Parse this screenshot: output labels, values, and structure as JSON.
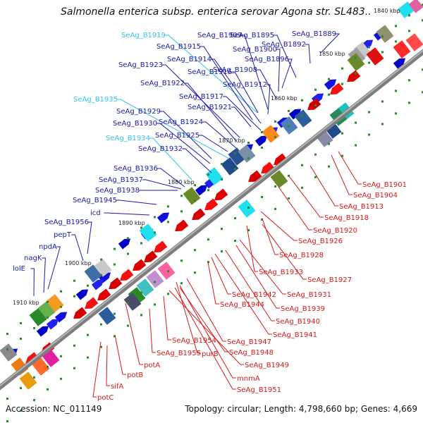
{
  "title": "Salmonella enterica subsp. enterica serovar Agona str. SL483...",
  "footer": {
    "accession": "Accession: NC_011149",
    "summary": "Topology: circular; Length: 4,798,660 bp; Genes: 4,669"
  },
  "colors": {
    "forward_label": "#1a1aa8",
    "forward_label_highlight": "#33c3ee",
    "reverse_label": "#d81818",
    "backbone": "#8a8a8a",
    "tick": "#2a8a2a"
  },
  "ruler": [
    "1840 kbp",
    "1850 kbp",
    "1860 kbp",
    "1870 kbp",
    "1880 kbp",
    "1890 kbp",
    "1900 kbp",
    "1910 kbp"
  ],
  "forward_genes": [
    {
      "label": "SeAg_B1919",
      "highlight": true
    },
    {
      "label": "SeAg_B1909",
      "highlight": false
    },
    {
      "label": "SeAg_B1895",
      "highlight": false
    },
    {
      "label": "SeAg_B1889",
      "highlight": false
    },
    {
      "label": "SeAg_B1915",
      "highlight": false
    },
    {
      "label": "SeAg_B1900",
      "highlight": false
    },
    {
      "label": "SeAg_B1892",
      "highlight": false
    },
    {
      "label": "SeAg_B1914",
      "highlight": false
    },
    {
      "label": "SeAg_B1896",
      "highlight": false
    },
    {
      "label": "SeAg_B1923",
      "highlight": false
    },
    {
      "label": "SeAg_B1916",
      "highlight": false
    },
    {
      "label": "SeAg_B1908",
      "highlight": false
    },
    {
      "label": "SeAg_B1922",
      "highlight": false
    },
    {
      "label": "SeAg_B1912",
      "highlight": false
    },
    {
      "label": "SeAg_B1917",
      "highlight": false
    },
    {
      "label": "SeAg_B1935",
      "highlight": true
    },
    {
      "label": "SeAg_B1921",
      "highlight": false
    },
    {
      "label": "SeAg_B1929",
      "highlight": false
    },
    {
      "label": "SeAg_B1924",
      "highlight": false
    },
    {
      "label": "SeAg_B1930",
      "highlight": false
    },
    {
      "label": "SeAg_B1925",
      "highlight": false
    },
    {
      "label": "SeAg_B1934",
      "highlight": true
    },
    {
      "label": "SeAg_B1932",
      "highlight": false
    },
    {
      "label": "SeAg_B1936",
      "highlight": false
    },
    {
      "label": "SeAg_B1937",
      "highlight": false
    },
    {
      "label": "SeAg_B1938",
      "highlight": false
    },
    {
      "label": "SeAg_B1945",
      "highlight": false
    },
    {
      "label": "icd",
      "highlight": false
    },
    {
      "label": "SeAg_B1956",
      "highlight": false
    },
    {
      "label": "pepT",
      "highlight": false
    },
    {
      "label": "npdA",
      "highlight": false
    },
    {
      "label": "nagK",
      "highlight": false
    },
    {
      "label": "lolE",
      "highlight": false
    }
  ],
  "reverse_genes": [
    "SeAg_B1901",
    "SeAg_B1904",
    "SeAg_B1913",
    "SeAg_B1918",
    "SeAg_B1920",
    "SeAg_B1926",
    "SeAg_B1928",
    "SeAg_B1933",
    "SeAg_B1927",
    "SeAg_B1931",
    "SeAg_B1942",
    "SeAg_B1944",
    "SeAg_B1939",
    "SeAg_B1940",
    "SeAg_B1941",
    "SeAg_B1947",
    "SeAg_B1954",
    "SeAg_B1948",
    "SeAg_B1955",
    "purB",
    "SeAg_B1949",
    "potA",
    "mnmA",
    "SeAg_B1951",
    "potB",
    "sifA",
    "potC"
  ]
}
